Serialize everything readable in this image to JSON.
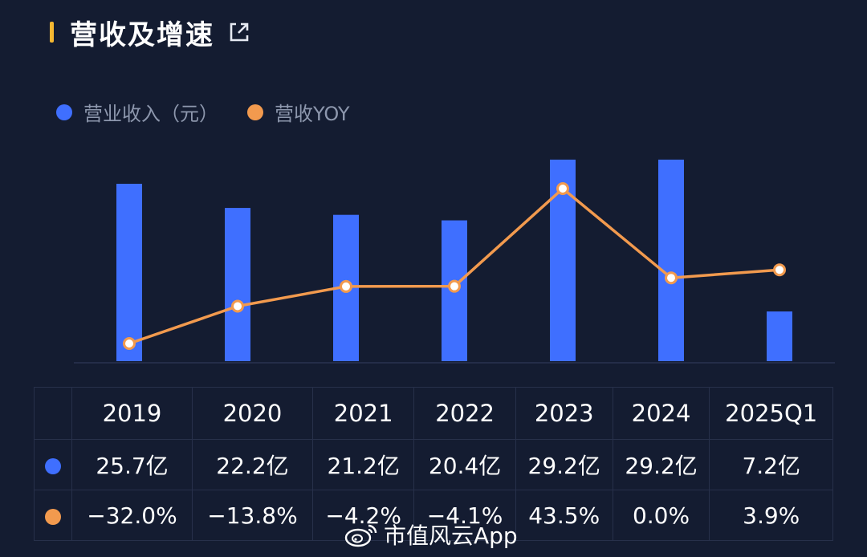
{
  "title": "营收及增速",
  "legend": [
    {
      "label": "营业收入（元）",
      "color": "#3f6fff"
    },
    {
      "label": "营收YOY",
      "color": "#f29a4e"
    }
  ],
  "chart_data": {
    "type": "bar",
    "categories": [
      "2019",
      "2020",
      "2021",
      "2022",
      "2023",
      "2024",
      "2025Q1"
    ],
    "series": [
      {
        "name": "营业收入（元）",
        "type": "bar",
        "values": [
          25.7,
          22.2,
          21.2,
          20.4,
          29.2,
          29.2,
          7.2
        ],
        "unit": "亿",
        "color": "#3f6fff"
      },
      {
        "name": "营收YOY",
        "type": "line",
        "values": [
          -32.0,
          -13.8,
          -4.2,
          -4.1,
          43.5,
          0.0,
          3.9
        ],
        "unit": "%",
        "color": "#f29a4e"
      }
    ],
    "table": {
      "rows": [
        {
          "marker": "revenue",
          "cells": [
            "25.7亿",
            "22.2亿",
            "21.2亿",
            "20.4亿",
            "29.2亿",
            "29.2亿",
            "7.2亿"
          ]
        },
        {
          "marker": "yoy",
          "cells": [
            "−32.0%",
            "−13.8%",
            "−4.2%",
            "−4.1%",
            "43.5%",
            "0.0%",
            "3.9%"
          ]
        }
      ]
    }
  },
  "watermark": "市值风云App"
}
